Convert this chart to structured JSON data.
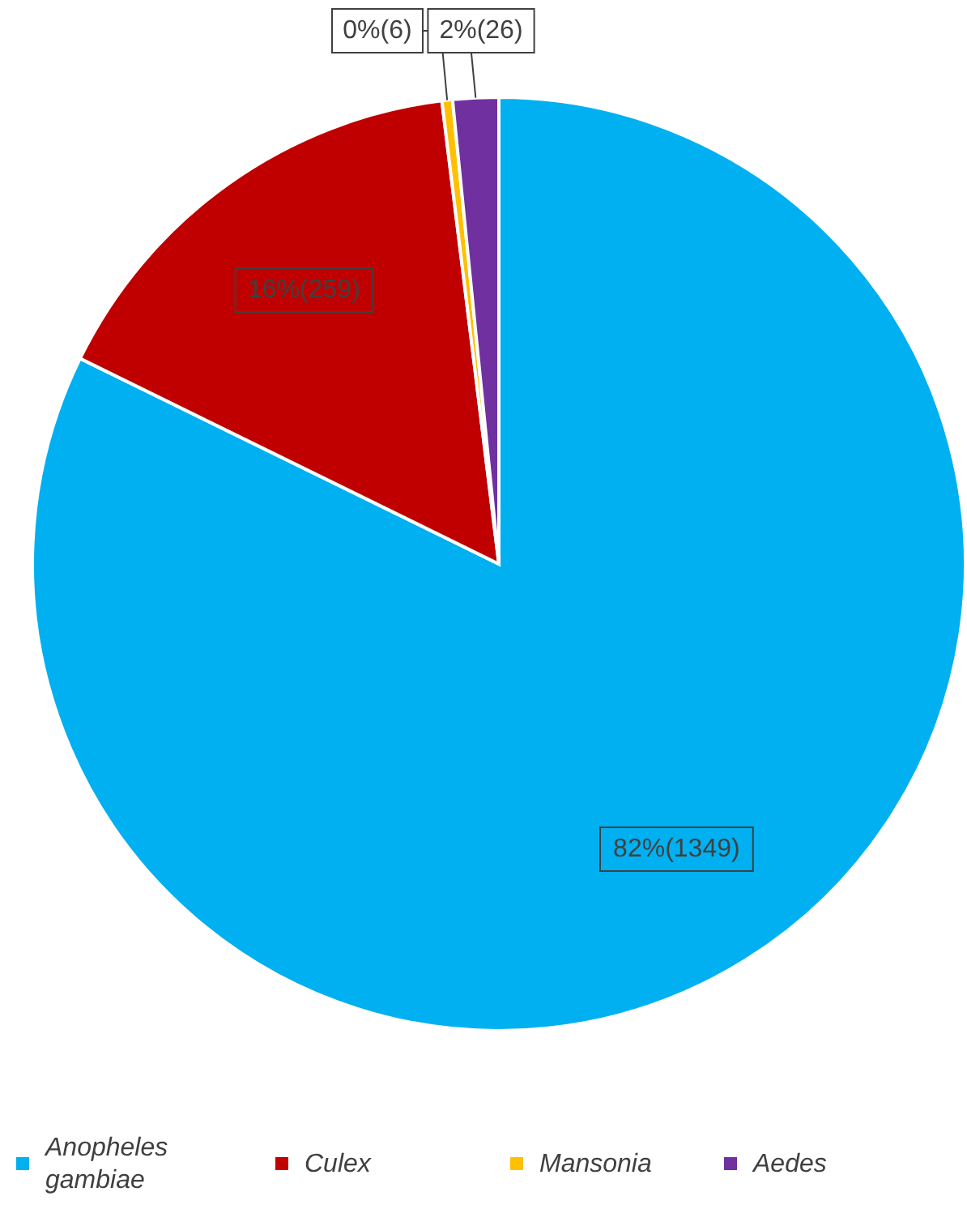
{
  "chart_data": {
    "type": "pie",
    "categories": [
      "Anopheles gambiae",
      "Culex",
      "Mansonia",
      "Aedes"
    ],
    "values": [
      1349,
      259,
      6,
      26
    ],
    "colors": [
      "#00b0f0",
      "#c00000",
      "#ffc000",
      "#7030a0"
    ],
    "value_labels": [
      "82%(1349)",
      "16%(259)",
      "0%(6)",
      "2%(26)"
    ],
    "legend": "bottom"
  }
}
